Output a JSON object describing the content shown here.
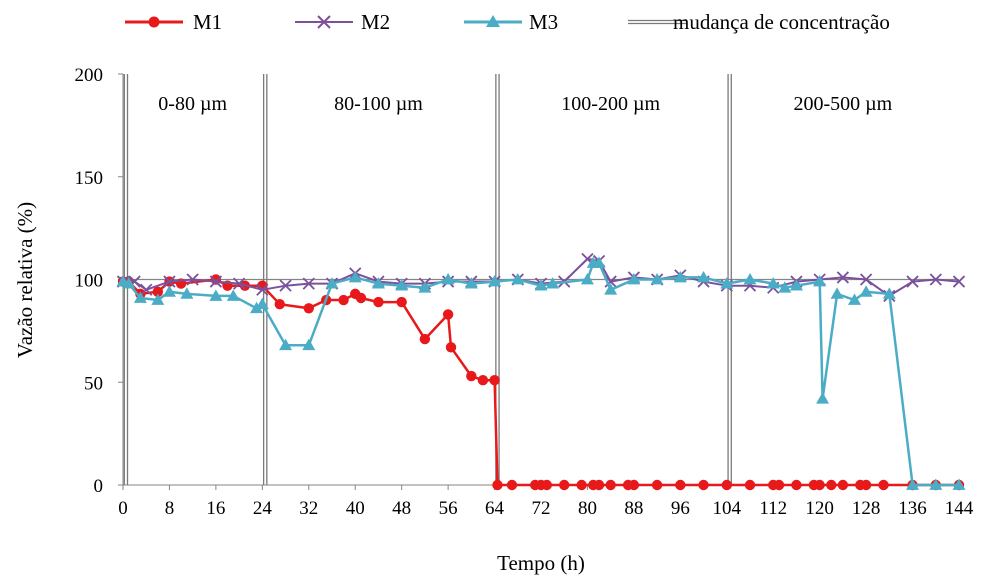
{
  "chart_data": {
    "type": "line",
    "title": "",
    "xlabel": "Tempo (h)",
    "ylabel": "Vazão relativa (%)",
    "xlim": [
      0,
      144
    ],
    "ylim": [
      0,
      200
    ],
    "xticks": [
      0,
      8,
      16,
      24,
      32,
      40,
      48,
      56,
      64,
      72,
      80,
      88,
      96,
      104,
      112,
      120,
      128,
      136,
      144
    ],
    "yticks": [
      0,
      50,
      100,
      150,
      200
    ],
    "grid": false,
    "reference_line_y": 100,
    "legend_position": "top",
    "concentration_change_label": "mudança de concentração",
    "concentration_changes": [
      0.5,
      24.5,
      64.5,
      104.5
    ],
    "regions": [
      {
        "label": "0-80 µm",
        "x_center": 12
      },
      {
        "label": "80-100 µm",
        "x_center": 44
      },
      {
        "label": "100-200 µm",
        "x_center": 84
      },
      {
        "label": "200-500 µm",
        "x_center": 124
      }
    ],
    "series": [
      {
        "name": "M1",
        "color": "#e8191b",
        "marker": "circle",
        "x": [
          0,
          1,
          3,
          6,
          8,
          10,
          16,
          18,
          21,
          24,
          27,
          32,
          35,
          38,
          40,
          41,
          44,
          48,
          52,
          56,
          56.5,
          60,
          62,
          64,
          64.5,
          67,
          71,
          72,
          73,
          76,
          79,
          81,
          82,
          84,
          87,
          88,
          92,
          96,
          100,
          104,
          108,
          112,
          113,
          116,
          119,
          120,
          122,
          124,
          127,
          128,
          131,
          136,
          140,
          144
        ],
        "y": [
          99,
          99,
          93,
          94,
          99,
          98,
          100,
          97,
          97,
          97,
          88,
          86,
          90,
          90,
          93,
          91,
          89,
          89,
          71,
          83,
          67,
          53,
          51,
          51,
          0,
          0,
          0,
          0,
          0,
          0,
          0,
          0,
          0,
          0,
          0,
          0,
          0,
          0,
          0,
          0,
          0,
          0,
          0,
          0,
          0,
          0,
          0,
          0,
          0,
          0,
          0,
          0,
          0,
          0
        ]
      },
      {
        "name": "M2",
        "color": "#7b519c",
        "marker": "x",
        "x": [
          0,
          2,
          4,
          8,
          12,
          16,
          20,
          24,
          28,
          32,
          36,
          40,
          44,
          48,
          52,
          56,
          60,
          64,
          68,
          72,
          76,
          80,
          82,
          84,
          88,
          92,
          96,
          100,
          104,
          108,
          112,
          116,
          120,
          124,
          128,
          132,
          136,
          140,
          144
        ],
        "y": [
          99,
          99,
          95,
          99,
          100,
          99,
          98,
          95,
          97,
          98,
          98,
          103,
          99,
          98,
          98,
          99,
          99,
          99,
          100,
          98,
          99,
          110,
          109,
          99,
          101,
          100,
          102,
          99,
          97,
          97,
          96,
          99,
          100,
          101,
          100,
          92,
          99,
          100,
          99
        ]
      },
      {
        "name": "M3",
        "color": "#4bacc6",
        "marker": "triangle",
        "x": [
          0,
          1,
          3,
          6,
          8,
          11,
          16,
          19,
          23,
          24,
          28,
          32,
          36,
          40,
          44,
          48,
          52,
          56,
          60,
          64,
          68,
          72,
          74,
          80,
          81,
          82,
          84,
          88,
          92,
          96,
          100,
          104,
          108,
          112,
          114,
          116,
          120,
          120.5,
          123,
          126,
          128,
          132,
          136,
          140,
          144
        ],
        "y": [
          99,
          98,
          91,
          90,
          94,
          93,
          92,
          92,
          86,
          88,
          68,
          68,
          98,
          101,
          98,
          97,
          96,
          100,
          98,
          99,
          100,
          97,
          98,
          100,
          108,
          108,
          95,
          100,
          100,
          101,
          101,
          98,
          100,
          98,
          96,
          97,
          99,
          42,
          93,
          90,
          94,
          93,
          0,
          0,
          0
        ]
      }
    ]
  }
}
